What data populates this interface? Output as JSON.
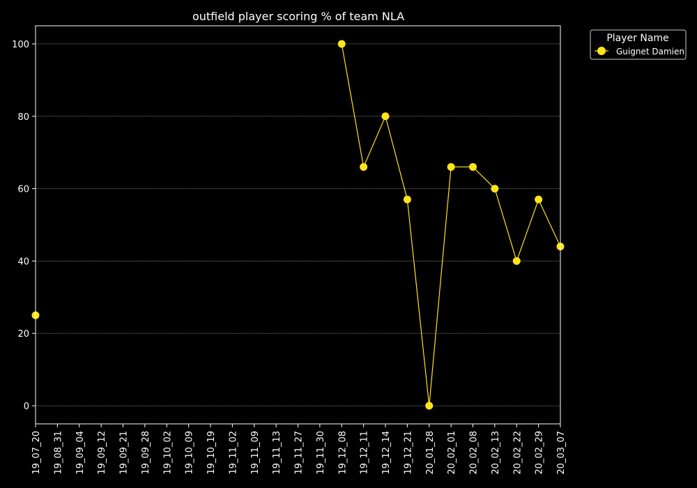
{
  "chart_data": {
    "type": "line",
    "title": "outfield player scoring % of team NLA",
    "xlabel": "",
    "ylabel": "",
    "categories": [
      "19_07_20",
      "19_08_31",
      "19_09_04",
      "19_09_12",
      "19_09_21",
      "19_09_28",
      "19_10_02",
      "19_10_09",
      "19_10_19",
      "19_11_02",
      "19_11_09",
      "19_11_13",
      "19_11_27",
      "19_11_30",
      "19_12_08",
      "19_12_11",
      "19_12_14",
      "19_12_21",
      "20_01_28",
      "20_02_01",
      "20_02_08",
      "20_02_13",
      "20_02_22",
      "20_02_29",
      "20_03_07"
    ],
    "series": [
      {
        "name": "Guignet Damien",
        "color": "#ffe41c",
        "values": [
          25,
          null,
          null,
          null,
          null,
          null,
          null,
          null,
          null,
          null,
          null,
          null,
          null,
          null,
          100,
          66,
          80,
          57,
          0,
          66,
          66,
          60,
          40,
          57,
          44
        ]
      }
    ],
    "ylim": [
      -5,
      105
    ],
    "yticks": [
      0,
      20,
      40,
      60,
      80,
      100
    ],
    "grid": true,
    "legend": {
      "title": "Player Name",
      "placement": "top-right-outside"
    },
    "background": "#000000",
    "foreground": "#ffffff"
  }
}
